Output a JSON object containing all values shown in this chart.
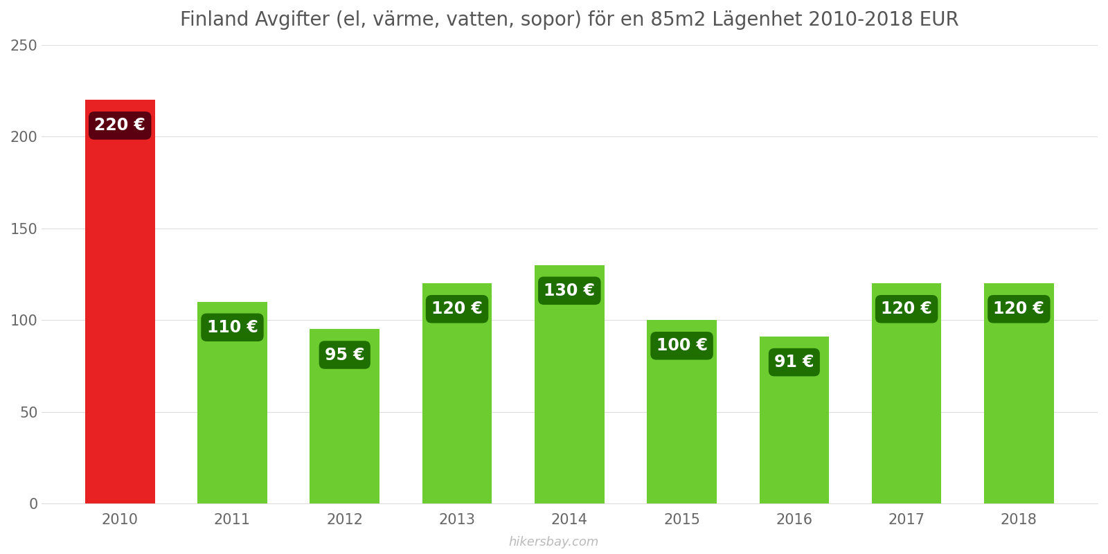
{
  "title": "Finland Avgifter (el, värme, vatten, sopor) för en 85m2 Lägenhet 2010-2018 EUR",
  "years": [
    2010,
    2011,
    2012,
    2013,
    2014,
    2015,
    2016,
    2017,
    2018
  ],
  "values": [
    220,
    110,
    95,
    120,
    130,
    100,
    91,
    120,
    120
  ],
  "bar_colors": [
    "#e82222",
    "#6dcc30",
    "#6dcc30",
    "#6dcc30",
    "#6dcc30",
    "#6dcc30",
    "#6dcc30",
    "#6dcc30",
    "#6dcc30"
  ],
  "label_bg_red": "#5a0010",
  "label_bg_green": "#1e6e00",
  "ylim": [
    0,
    250
  ],
  "yticks": [
    0,
    50,
    100,
    150,
    200,
    250
  ],
  "watermark": "hikersbay.com",
  "title_fontsize": 20,
  "tick_fontsize": 15,
  "label_fontsize": 17,
  "bar_width": 0.62
}
